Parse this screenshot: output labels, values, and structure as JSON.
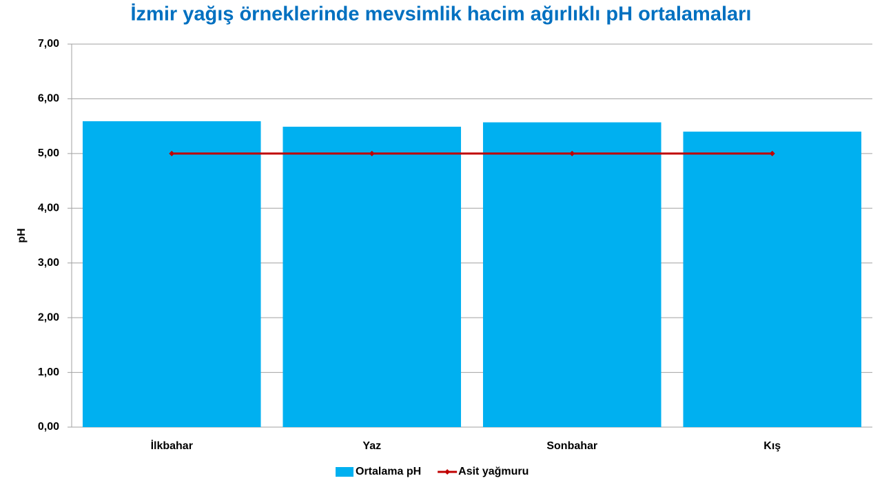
{
  "chart_data": {
    "type": "bar",
    "title": "İzmir yağış örneklerinde mevsimlik hacim ağırlıklı pH ortalamaları",
    "y_label": "pH",
    "categories": [
      "İlkbahar",
      "Yaz",
      "Sonbahar",
      "Kış"
    ],
    "series": [
      {
        "name": "Ortalama pH",
        "type": "bar",
        "color": "#00b0f0",
        "values": [
          5.59,
          5.49,
          5.57,
          5.4
        ]
      },
      {
        "name": "Asit yağmuru",
        "type": "line",
        "color": "#c00000",
        "values": [
          5,
          5,
          5,
          5
        ]
      }
    ],
    "ylim": [
      0,
      7
    ],
    "yticks": [
      {
        "value": 0,
        "label": "0,00"
      },
      {
        "value": 1,
        "label": "1,00"
      },
      {
        "value": 2,
        "label": "2,00"
      },
      {
        "value": 3,
        "label": "3,00"
      },
      {
        "value": 4,
        "label": "4,00"
      },
      {
        "value": 5,
        "label": "5,00"
      },
      {
        "value": 6,
        "label": "6,00"
      },
      {
        "value": 7,
        "label": "7,00"
      }
    ],
    "grid": true,
    "legend": "bottom"
  }
}
